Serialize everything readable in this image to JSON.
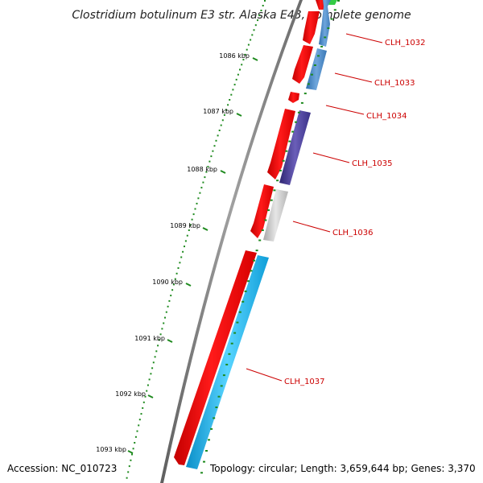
{
  "title": "Clostridium botulinum E3 str. Alaska E43, complete genome",
  "footer": {
    "accession": "Accession: NC_010723",
    "topology": "Topology: circular; Length: 3,659,644 bp; Genes: 3,370"
  },
  "colors": {
    "backbone": "#7a7a7a",
    "forward_gene": "#ff0000",
    "tick_major": "#1e8a1e",
    "tick_minor": "#1e8a1e",
    "label_text": "#cc0000"
  },
  "kbp_ticks": [
    "1086 kbp",
    "1087 kbp",
    "1088 kbp",
    "1089 kbp",
    "1090 kbp",
    "1091 kbp",
    "1092 kbp",
    "1093 kbp"
  ],
  "genes": [
    {
      "id": "CLH_1032",
      "color": "#4a8ccc"
    },
    {
      "id": "CLH_1033",
      "color": "#4a8ccc"
    },
    {
      "id": "CLH_1034",
      "color": "#ff0000"
    },
    {
      "id": "CLH_1035",
      "color": "#4a3f96"
    },
    {
      "id": "CLH_1036",
      "color": "#c0c0c0"
    },
    {
      "id": "CLH_1037",
      "color": "#18b8f0"
    }
  ]
}
